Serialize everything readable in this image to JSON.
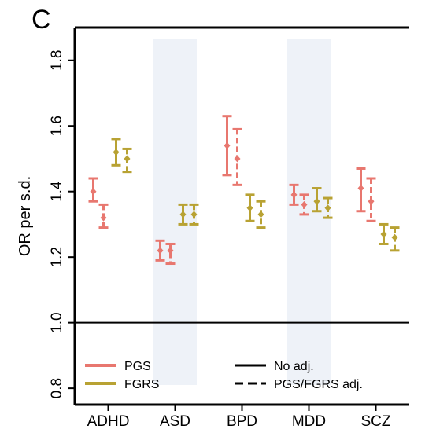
{
  "panel_label": "C",
  "chart_data": {
    "type": "errorbar",
    "ylabel": "OR per s.d.",
    "ylim": [
      0.75,
      1.9
    ],
    "yticks": [
      "0.8",
      "1.0",
      "1.2",
      "1.4",
      "1.6",
      "1.8"
    ],
    "reference_line": 1.0,
    "categories": [
      "ADHD",
      "ASD",
      "BPD",
      "MDD",
      "SCZ"
    ],
    "shaded_categories": [
      "ASD",
      "MDD"
    ],
    "colors": {
      "PGS": "#E8776F",
      "FGRS": "#B8A233",
      "shade": "#EEF2F8"
    },
    "legend": {
      "placement": "bottom",
      "color_entries": [
        "PGS",
        "FGRS"
      ],
      "line_entries": [
        "No adj.",
        "PGS/FGRS adj."
      ]
    },
    "series": [
      {
        "predictor": "PGS",
        "adjustment": "No adj.",
        "style": "solid",
        "values": [
          {
            "category": "ADHD",
            "estimate": 1.4,
            "low": 1.37,
            "high": 1.44
          },
          {
            "category": "ASD",
            "estimate": 1.22,
            "low": 1.19,
            "high": 1.25
          },
          {
            "category": "BPD",
            "estimate": 1.54,
            "low": 1.45,
            "high": 1.63
          },
          {
            "category": "MDD",
            "estimate": 1.39,
            "low": 1.36,
            "high": 1.42
          },
          {
            "category": "SCZ",
            "estimate": 1.41,
            "low": 1.34,
            "high": 1.47
          }
        ]
      },
      {
        "predictor": "PGS",
        "adjustment": "PGS/FGRS adj.",
        "style": "dashed",
        "values": [
          {
            "category": "ADHD",
            "estimate": 1.32,
            "low": 1.29,
            "high": 1.36
          },
          {
            "category": "ASD",
            "estimate": 1.22,
            "low": 1.18,
            "high": 1.24
          },
          {
            "category": "BPD",
            "estimate": 1.5,
            "low": 1.42,
            "high": 1.59
          },
          {
            "category": "MDD",
            "estimate": 1.36,
            "low": 1.33,
            "high": 1.39
          },
          {
            "category": "SCZ",
            "estimate": 1.37,
            "low": 1.31,
            "high": 1.44
          }
        ]
      },
      {
        "predictor": "FGRS",
        "adjustment": "No adj.",
        "style": "solid",
        "values": [
          {
            "category": "ADHD",
            "estimate": 1.52,
            "low": 1.48,
            "high": 1.56
          },
          {
            "category": "ASD",
            "estimate": 1.33,
            "low": 1.3,
            "high": 1.36
          },
          {
            "category": "BPD",
            "estimate": 1.35,
            "low": 1.31,
            "high": 1.39
          },
          {
            "category": "MDD",
            "estimate": 1.37,
            "low": 1.34,
            "high": 1.41
          },
          {
            "category": "SCZ",
            "estimate": 1.27,
            "low": 1.24,
            "high": 1.3
          }
        ]
      },
      {
        "predictor": "FGRS",
        "adjustment": "PGS/FGRS adj.",
        "style": "dashed",
        "values": [
          {
            "category": "ADHD",
            "estimate": 1.5,
            "low": 1.46,
            "high": 1.53
          },
          {
            "category": "ASD",
            "estimate": 1.33,
            "low": 1.3,
            "high": 1.36
          },
          {
            "category": "BPD",
            "estimate": 1.33,
            "low": 1.29,
            "high": 1.37
          },
          {
            "category": "MDD",
            "estimate": 1.35,
            "low": 1.32,
            "high": 1.38
          },
          {
            "category": "SCZ",
            "estimate": 1.26,
            "low": 1.22,
            "high": 1.29
          }
        ]
      }
    ]
  }
}
